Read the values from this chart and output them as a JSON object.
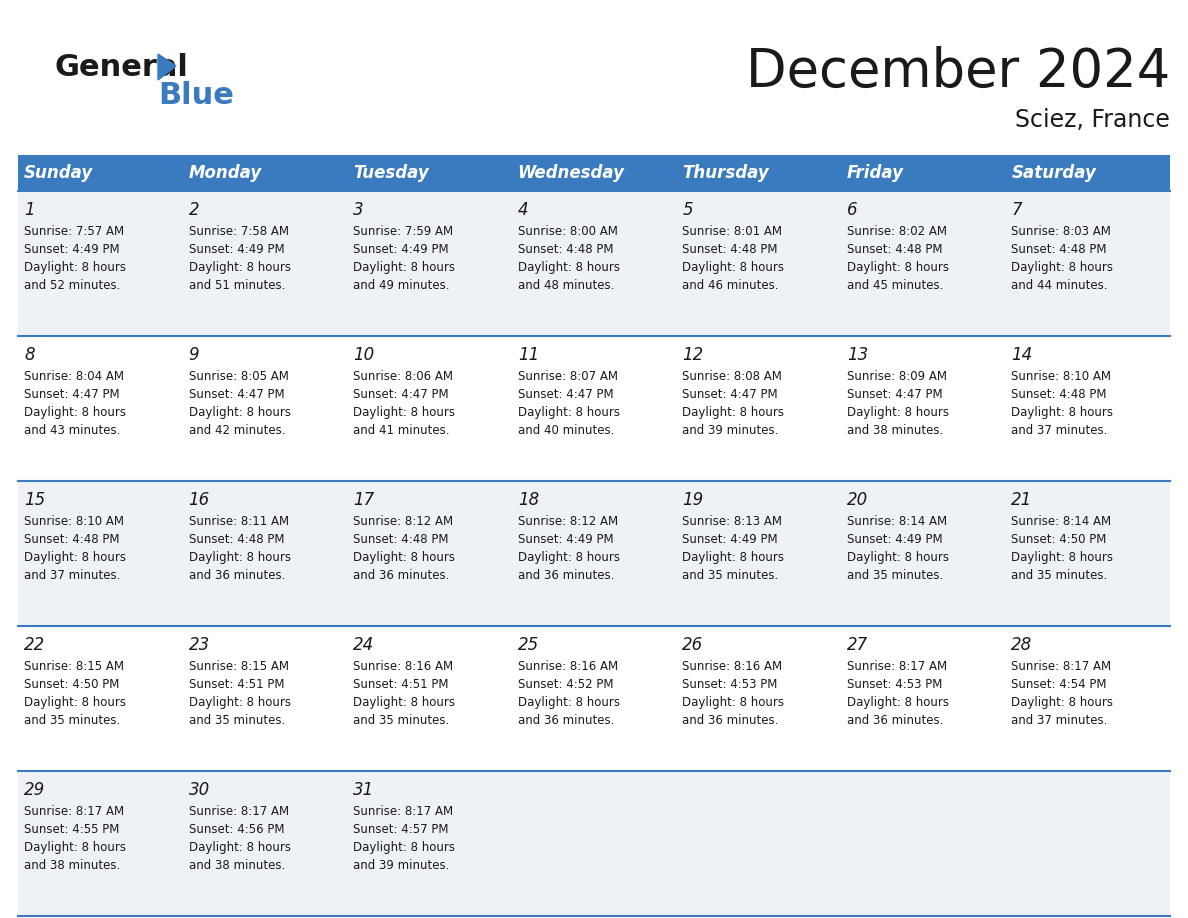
{
  "title": "December 2024",
  "subtitle": "Sciez, France",
  "header_color": "#3a7abf",
  "header_text_color": "#ffffff",
  "row0_color": "#eef2f7",
  "row1_color": "#ffffff",
  "day_headers": [
    "Sunday",
    "Monday",
    "Tuesday",
    "Wednesday",
    "Thursday",
    "Friday",
    "Saturday"
  ],
  "days": [
    {
      "day": 1,
      "col": 0,
      "row": 0,
      "sunrise": "7:57 AM",
      "sunset": "4:49 PM",
      "daylight_hours": 8,
      "daylight_minutes": 52
    },
    {
      "day": 2,
      "col": 1,
      "row": 0,
      "sunrise": "7:58 AM",
      "sunset": "4:49 PM",
      "daylight_hours": 8,
      "daylight_minutes": 51
    },
    {
      "day": 3,
      "col": 2,
      "row": 0,
      "sunrise": "7:59 AM",
      "sunset": "4:49 PM",
      "daylight_hours": 8,
      "daylight_minutes": 49
    },
    {
      "day": 4,
      "col": 3,
      "row": 0,
      "sunrise": "8:00 AM",
      "sunset": "4:48 PM",
      "daylight_hours": 8,
      "daylight_minutes": 48
    },
    {
      "day": 5,
      "col": 4,
      "row": 0,
      "sunrise": "8:01 AM",
      "sunset": "4:48 PM",
      "daylight_hours": 8,
      "daylight_minutes": 46
    },
    {
      "day": 6,
      "col": 5,
      "row": 0,
      "sunrise": "8:02 AM",
      "sunset": "4:48 PM",
      "daylight_hours": 8,
      "daylight_minutes": 45
    },
    {
      "day": 7,
      "col": 6,
      "row": 0,
      "sunrise": "8:03 AM",
      "sunset": "4:48 PM",
      "daylight_hours": 8,
      "daylight_minutes": 44
    },
    {
      "day": 8,
      "col": 0,
      "row": 1,
      "sunrise": "8:04 AM",
      "sunset": "4:47 PM",
      "daylight_hours": 8,
      "daylight_minutes": 43
    },
    {
      "day": 9,
      "col": 1,
      "row": 1,
      "sunrise": "8:05 AM",
      "sunset": "4:47 PM",
      "daylight_hours": 8,
      "daylight_minutes": 42
    },
    {
      "day": 10,
      "col": 2,
      "row": 1,
      "sunrise": "8:06 AM",
      "sunset": "4:47 PM",
      "daylight_hours": 8,
      "daylight_minutes": 41
    },
    {
      "day": 11,
      "col": 3,
      "row": 1,
      "sunrise": "8:07 AM",
      "sunset": "4:47 PM",
      "daylight_hours": 8,
      "daylight_minutes": 40
    },
    {
      "day": 12,
      "col": 4,
      "row": 1,
      "sunrise": "8:08 AM",
      "sunset": "4:47 PM",
      "daylight_hours": 8,
      "daylight_minutes": 39
    },
    {
      "day": 13,
      "col": 5,
      "row": 1,
      "sunrise": "8:09 AM",
      "sunset": "4:47 PM",
      "daylight_hours": 8,
      "daylight_minutes": 38
    },
    {
      "day": 14,
      "col": 6,
      "row": 1,
      "sunrise": "8:10 AM",
      "sunset": "4:48 PM",
      "daylight_hours": 8,
      "daylight_minutes": 37
    },
    {
      "day": 15,
      "col": 0,
      "row": 2,
      "sunrise": "8:10 AM",
      "sunset": "4:48 PM",
      "daylight_hours": 8,
      "daylight_minutes": 37
    },
    {
      "day": 16,
      "col": 1,
      "row": 2,
      "sunrise": "8:11 AM",
      "sunset": "4:48 PM",
      "daylight_hours": 8,
      "daylight_minutes": 36
    },
    {
      "day": 17,
      "col": 2,
      "row": 2,
      "sunrise": "8:12 AM",
      "sunset": "4:48 PM",
      "daylight_hours": 8,
      "daylight_minutes": 36
    },
    {
      "day": 18,
      "col": 3,
      "row": 2,
      "sunrise": "8:12 AM",
      "sunset": "4:49 PM",
      "daylight_hours": 8,
      "daylight_minutes": 36
    },
    {
      "day": 19,
      "col": 4,
      "row": 2,
      "sunrise": "8:13 AM",
      "sunset": "4:49 PM",
      "daylight_hours": 8,
      "daylight_minutes": 35
    },
    {
      "day": 20,
      "col": 5,
      "row": 2,
      "sunrise": "8:14 AM",
      "sunset": "4:49 PM",
      "daylight_hours": 8,
      "daylight_minutes": 35
    },
    {
      "day": 21,
      "col": 6,
      "row": 2,
      "sunrise": "8:14 AM",
      "sunset": "4:50 PM",
      "daylight_hours": 8,
      "daylight_minutes": 35
    },
    {
      "day": 22,
      "col": 0,
      "row": 3,
      "sunrise": "8:15 AM",
      "sunset": "4:50 PM",
      "daylight_hours": 8,
      "daylight_minutes": 35
    },
    {
      "day": 23,
      "col": 1,
      "row": 3,
      "sunrise": "8:15 AM",
      "sunset": "4:51 PM",
      "daylight_hours": 8,
      "daylight_minutes": 35
    },
    {
      "day": 24,
      "col": 2,
      "row": 3,
      "sunrise": "8:16 AM",
      "sunset": "4:51 PM",
      "daylight_hours": 8,
      "daylight_minutes": 35
    },
    {
      "day": 25,
      "col": 3,
      "row": 3,
      "sunrise": "8:16 AM",
      "sunset": "4:52 PM",
      "daylight_hours": 8,
      "daylight_minutes": 36
    },
    {
      "day": 26,
      "col": 4,
      "row": 3,
      "sunrise": "8:16 AM",
      "sunset": "4:53 PM",
      "daylight_hours": 8,
      "daylight_minutes": 36
    },
    {
      "day": 27,
      "col": 5,
      "row": 3,
      "sunrise": "8:17 AM",
      "sunset": "4:53 PM",
      "daylight_hours": 8,
      "daylight_minutes": 36
    },
    {
      "day": 28,
      "col": 6,
      "row": 3,
      "sunrise": "8:17 AM",
      "sunset": "4:54 PM",
      "daylight_hours": 8,
      "daylight_minutes": 37
    },
    {
      "day": 29,
      "col": 0,
      "row": 4,
      "sunrise": "8:17 AM",
      "sunset": "4:55 PM",
      "daylight_hours": 8,
      "daylight_minutes": 38
    },
    {
      "day": 30,
      "col": 1,
      "row": 4,
      "sunrise": "8:17 AM",
      "sunset": "4:56 PM",
      "daylight_hours": 8,
      "daylight_minutes": 38
    },
    {
      "day": 31,
      "col": 2,
      "row": 4,
      "sunrise": "8:17 AM",
      "sunset": "4:57 PM",
      "daylight_hours": 8,
      "daylight_minutes": 39
    }
  ],
  "num_rows": 5,
  "title_fontsize": 38,
  "subtitle_fontsize": 17,
  "header_fontsize": 12,
  "day_num_fontsize": 12,
  "cell_text_fontsize": 8.5
}
